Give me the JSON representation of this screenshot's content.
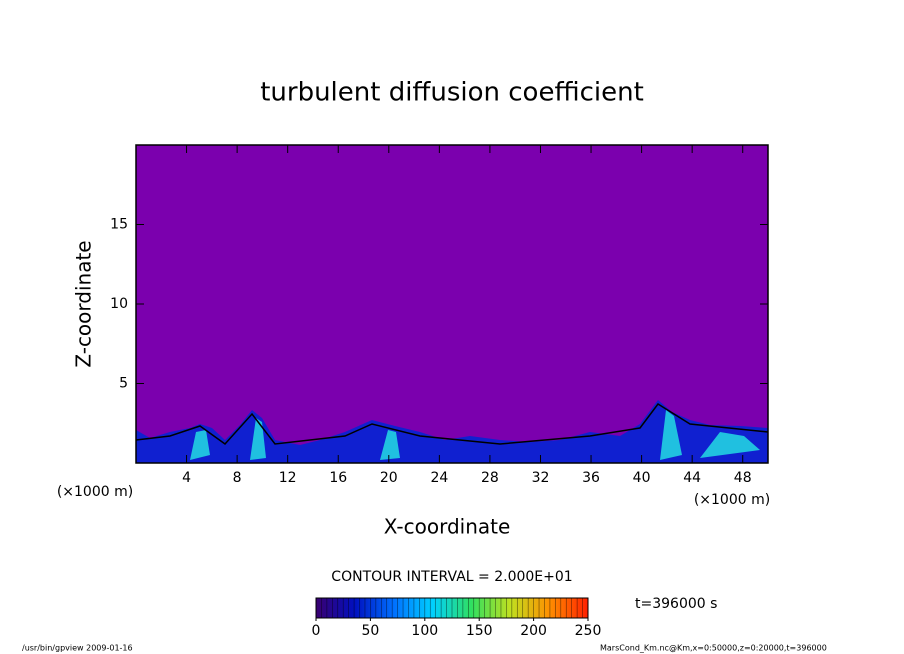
{
  "chart_data": {
    "type": "contour",
    "title": "turbulent diffusion coefficient",
    "xlabel": "X-coordinate",
    "ylabel": "Z-coordinate",
    "x_unit": "(×1000 m)",
    "xlim": [
      0,
      50
    ],
    "xticks": [
      4,
      8,
      12,
      16,
      20,
      24,
      28,
      32,
      36,
      40,
      44,
      48
    ],
    "ylim": [
      0,
      20
    ],
    "yticks": [
      5,
      10,
      15
    ],
    "background_color": "#7b00ae",
    "colorbar": {
      "lim": [
        0,
        250
      ],
      "ticks": [
        0,
        50,
        100,
        150,
        200,
        250
      ],
      "colors": [
        "#3a0070",
        "#0010c0",
        "#0070ff",
        "#00d0ff",
        "#30e060",
        "#c0e020",
        "#ff9000",
        "#ff2000"
      ]
    },
    "contour_interval": "CONTOUR INTERVAL = 2.000E+01",
    "time_label": "t=396000 s",
    "footer_left": "/usr/bin/gpview  2009-01-16",
    "footer_right": "MarsCond_Km.nc@Km,x=0:50000,z=0:20000,t=396000"
  }
}
